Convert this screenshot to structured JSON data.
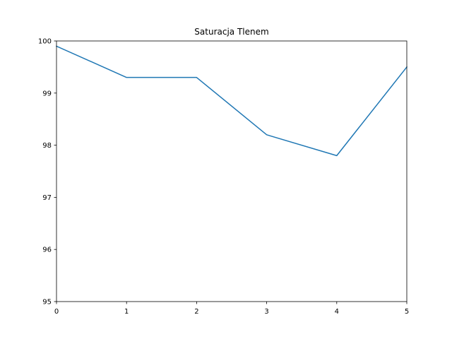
{
  "chart_data": {
    "type": "line",
    "title": "Saturacja Tlenem",
    "xlabel": "",
    "ylabel": "",
    "x": [
      0,
      1,
      2,
      3,
      4,
      5
    ],
    "series": [
      {
        "values": [
          99.9,
          99.3,
          99.3,
          98.2,
          97.8,
          99.5
        ],
        "color": "#1f77b4"
      }
    ],
    "xlim": [
      0,
      5
    ],
    "ylim": [
      95,
      100
    ],
    "xticks": [
      0,
      1,
      2,
      3,
      4,
      5
    ],
    "yticks": [
      95,
      96,
      97,
      98,
      99,
      100
    ],
    "grid": false
  }
}
